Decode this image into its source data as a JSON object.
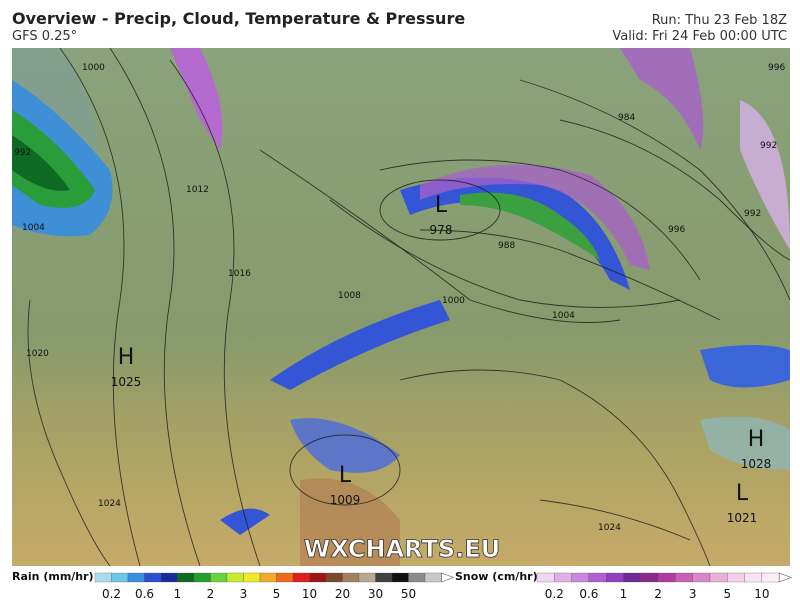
{
  "header": {
    "title": "Overview - Precip, Cloud, Temperature & Pressure",
    "model": "GFS 0.25°",
    "run": "Run: Thu 23 Feb 18Z",
    "valid": "Valid: Fri 24 Feb 00:00 UTC"
  },
  "centers": [
    {
      "letter": "H",
      "value": "1025"
    },
    {
      "letter": "L",
      "value": "978"
    },
    {
      "letter": "L",
      "value": "1009"
    },
    {
      "letter": "H",
      "value": "1028"
    },
    {
      "letter": "L",
      "value": "1021"
    }
  ],
  "isobar_labels": [
    "1000",
    "992",
    "1004",
    "1012",
    "1016",
    "1020",
    "1024",
    "1008",
    "1000",
    "988",
    "1004",
    "984",
    "992",
    "992",
    "996",
    "996",
    "1024"
  ],
  "watermark": "WXCHARTS.EU",
  "legend": {
    "rain_title": "Rain (mm/hr)",
    "rain_labels": [
      "0.2",
      "0.6",
      "1",
      "2",
      "3",
      "5",
      "10",
      "20",
      "30",
      "50"
    ],
    "snow_title": "Snow (cm/hr)",
    "snow_labels": [
      "0.2",
      "0.6",
      "1",
      "2",
      "3",
      "5",
      "10"
    ]
  }
}
